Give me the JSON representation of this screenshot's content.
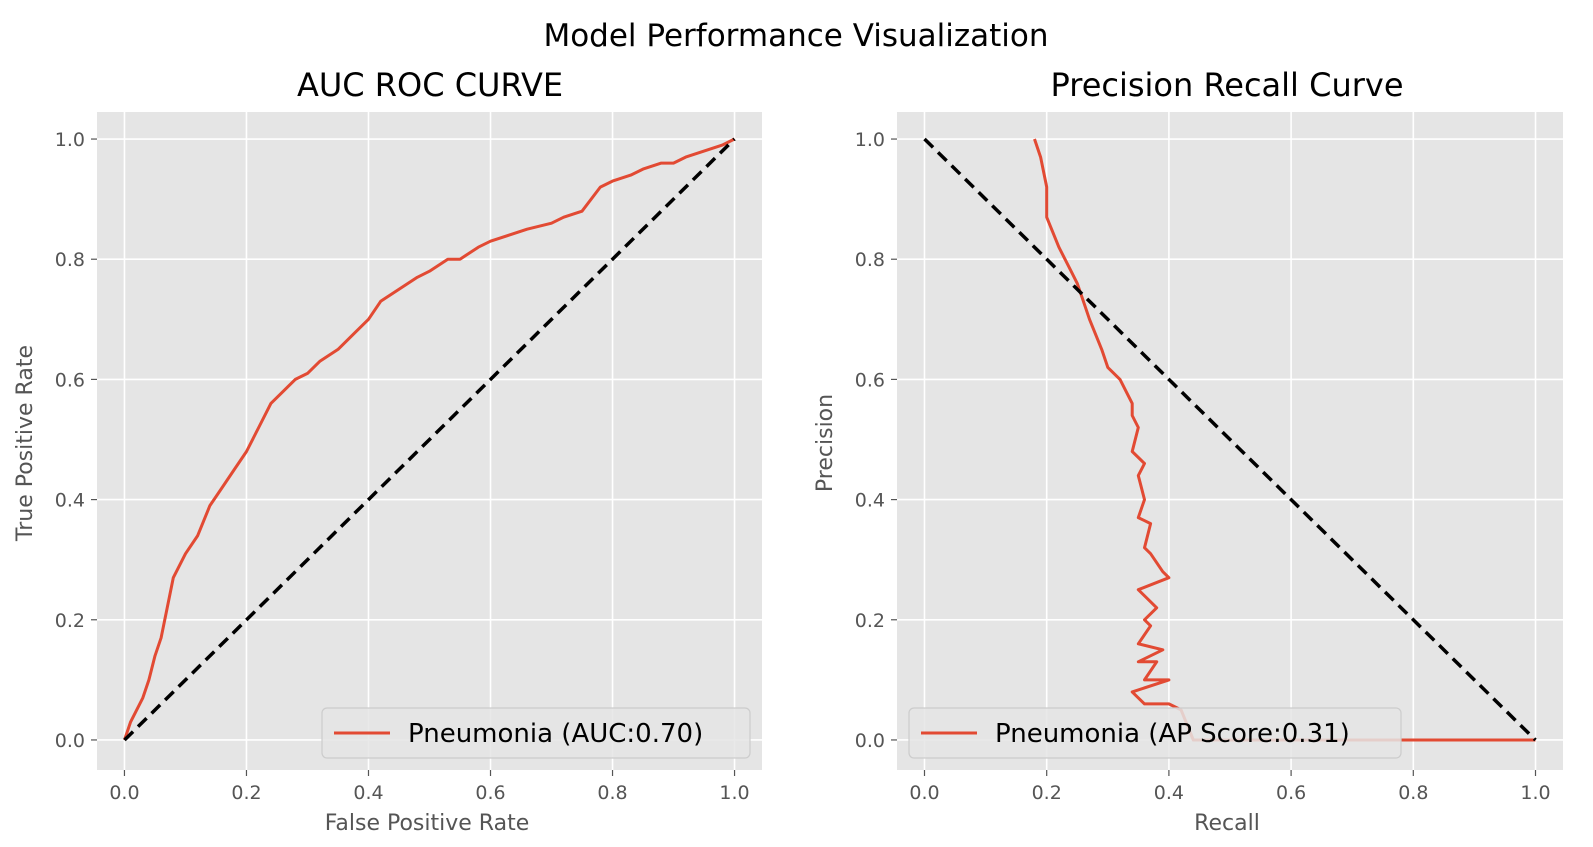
{
  "figure": {
    "suptitle": "Model Performance Visualization",
    "style": "ggplot",
    "colors": {
      "axes_background": "#e5e5e5",
      "grid": "#ffffff",
      "curve": "#e24a33",
      "reference_line": "#000000"
    }
  },
  "chart_data": [
    {
      "type": "line",
      "title": "AUC ROC CURVE",
      "xlabel": "False Positive Rate",
      "ylabel": "True Positive Rate",
      "xlim": [
        -0.045,
        1.045
      ],
      "ylim": [
        -0.05,
        1.045
      ],
      "xticks": [
        "0.0",
        "0.2",
        "0.4",
        "0.6",
        "0.8",
        "1.0"
      ],
      "yticks": [
        "0.0",
        "0.2",
        "0.4",
        "0.6",
        "0.8",
        "1.0"
      ],
      "grid": true,
      "legend_position": "lower right",
      "series": [
        {
          "name": "Pneumonia (AUC:0.70)",
          "style": "solid",
          "color": "#e24a33",
          "x": [
            0.0,
            0.01,
            0.02,
            0.03,
            0.04,
            0.05,
            0.06,
            0.07,
            0.08,
            0.09,
            0.1,
            0.12,
            0.14,
            0.16,
            0.18,
            0.2,
            0.22,
            0.24,
            0.26,
            0.28,
            0.3,
            0.32,
            0.35,
            0.38,
            0.4,
            0.42,
            0.45,
            0.48,
            0.5,
            0.53,
            0.55,
            0.58,
            0.6,
            0.63,
            0.66,
            0.7,
            0.72,
            0.75,
            0.78,
            0.8,
            0.83,
            0.85,
            0.88,
            0.9,
            0.92,
            0.95,
            0.98,
            1.0
          ],
          "y": [
            0.0,
            0.03,
            0.05,
            0.07,
            0.1,
            0.14,
            0.17,
            0.22,
            0.27,
            0.29,
            0.31,
            0.34,
            0.39,
            0.42,
            0.45,
            0.48,
            0.52,
            0.56,
            0.58,
            0.6,
            0.61,
            0.63,
            0.65,
            0.68,
            0.7,
            0.73,
            0.75,
            0.77,
            0.78,
            0.8,
            0.8,
            0.82,
            0.83,
            0.84,
            0.85,
            0.86,
            0.87,
            0.88,
            0.92,
            0.93,
            0.94,
            0.95,
            0.96,
            0.96,
            0.97,
            0.98,
            0.99,
            1.0
          ]
        },
        {
          "name": "",
          "style": "dashed",
          "color": "#000000",
          "x": [
            0.0,
            1.0
          ],
          "y": [
            0.0,
            1.0
          ]
        }
      ]
    },
    {
      "type": "line",
      "title": "Precision Recall Curve",
      "xlabel": "Recall",
      "ylabel": "Precision",
      "xlim": [
        -0.045,
        1.045
      ],
      "ylim": [
        -0.05,
        1.045
      ],
      "xticks": [
        "0.0",
        "0.2",
        "0.4",
        "0.6",
        "0.8",
        "1.0"
      ],
      "yticks": [
        "0.0",
        "0.2",
        "0.4",
        "0.6",
        "0.8",
        "1.0"
      ],
      "grid": true,
      "legend_position": "lower left",
      "series": [
        {
          "name": "Pneumonia (AP Score:0.31)",
          "style": "solid",
          "color": "#e24a33",
          "x": [
            1.0,
            0.8,
            0.6,
            0.44,
            0.42,
            0.4,
            0.36,
            0.34,
            0.4,
            0.36,
            0.38,
            0.35,
            0.39,
            0.35,
            0.37,
            0.36,
            0.38,
            0.35,
            0.4,
            0.39,
            0.37,
            0.36,
            0.37,
            0.35,
            0.36,
            0.35,
            0.36,
            0.34,
            0.35,
            0.34,
            0.34,
            0.33,
            0.32,
            0.3,
            0.29,
            0.27,
            0.26,
            0.25,
            0.24,
            0.22,
            0.2,
            0.2,
            0.19,
            0.18
          ],
          "y": [
            0.0,
            0.0,
            0.0,
            0.0,
            0.05,
            0.06,
            0.06,
            0.08,
            0.1,
            0.1,
            0.13,
            0.13,
            0.15,
            0.16,
            0.19,
            0.2,
            0.22,
            0.25,
            0.27,
            0.28,
            0.31,
            0.32,
            0.36,
            0.37,
            0.4,
            0.44,
            0.46,
            0.48,
            0.52,
            0.54,
            0.56,
            0.58,
            0.6,
            0.62,
            0.65,
            0.7,
            0.73,
            0.76,
            0.78,
            0.82,
            0.87,
            0.92,
            0.97,
            1.0
          ]
        },
        {
          "name": "",
          "style": "dashed",
          "color": "#000000",
          "x": [
            0.0,
            1.0
          ],
          "y": [
            1.0,
            0.0
          ]
        }
      ]
    }
  ]
}
